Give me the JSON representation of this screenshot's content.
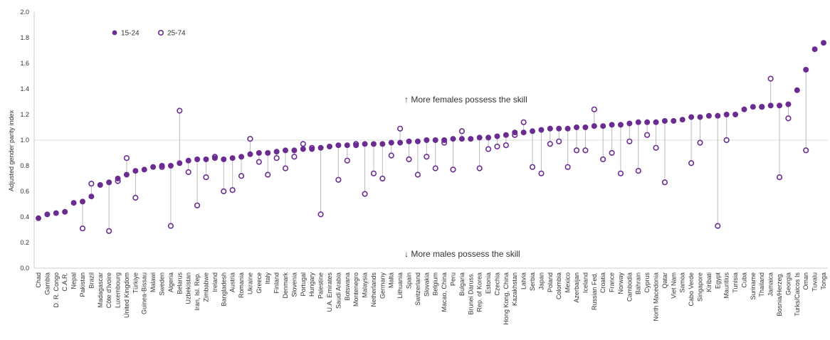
{
  "chart_data": {
    "type": "scatter",
    "ylabel": "Adjusted gender parity index",
    "ylim": [
      0,
      2
    ],
    "yticks": [
      "0.0",
      "0.2",
      "0.4",
      "0.6",
      "0.8",
      "1.0",
      "1.2",
      "1.4",
      "1.6",
      "1.8",
      "2.0"
    ],
    "reference_line": 1.0,
    "grid": false,
    "legend": "top-left",
    "annotations": {
      "upper": "↑ More females possess the skill",
      "lower": "↓ More males possess the skill"
    },
    "colors": {
      "series": "#6b2c91",
      "connector": "#bbbbbb",
      "axis": "#cccccc"
    },
    "series": [
      {
        "name": "15-24",
        "marker": "filled"
      },
      {
        "name": "25-74",
        "marker": "hollow"
      }
    ],
    "categories": [
      "Chad",
      "Gambia",
      "D. R. Congo",
      "C.A.R.",
      "Nepal",
      "Pakistan",
      "Brazil",
      "Madagascar",
      "Côte d'Ivoire",
      "Luxembourg",
      "United Kingdom",
      "Türkiye",
      "Guinea-Bissau",
      "Malawi",
      "Sweden",
      "Algeria",
      "Belarus",
      "Uzbekistan",
      "Iran, Isl. Rep.",
      "Zimbabwe",
      "Ireland",
      "Bangladesh",
      "Austria",
      "Romania",
      "Ukraine",
      "Greece",
      "Italy",
      "Finland",
      "Denmark",
      "Slovenia",
      "Portugal",
      "Hungary",
      "Palestine",
      "U.A. Emirates",
      "Saudi Arabia",
      "Botswana",
      "Montenegro",
      "Malaysia",
      "Netherlands",
      "Germany",
      "Malta",
      "Lithuania",
      "Spain",
      "Switzerland",
      "Slovakia",
      "Belgium",
      "Macao, China",
      "Peru",
      "Bulgaria",
      "Brunei Daruss.",
      "Rep. of Korea",
      "Estonia",
      "Czechia",
      "Hong Kong, China",
      "Kazakhstan",
      "Latvia",
      "Serbia",
      "Japan",
      "Poland",
      "Colombia",
      "Mexico",
      "Azerbaijan",
      "Iceland",
      "Russian Fed.",
      "Croatia",
      "France",
      "Norway",
      "Cambodia",
      "Bahrain",
      "Cyprus",
      "North Macedonia",
      "Qatar",
      "Viet Nam",
      "Samoa",
      "Cabo Verde",
      "Singapore",
      "Kiribati",
      "Egypt",
      "Mauritius",
      "Tunisia",
      "Cuba",
      "Suriname",
      "Thailand",
      "Jamaica",
      "Bosnia/Herzeg.",
      "Georgia",
      "Turks/Caicos Is",
      "Oman",
      "Tuvalu",
      "Tonga"
    ],
    "values_15_24": [
      0.39,
      0.42,
      0.43,
      0.44,
      0.51,
      0.52,
      0.56,
      0.65,
      0.67,
      0.7,
      0.73,
      0.76,
      0.77,
      0.79,
      0.8,
      0.8,
      0.82,
      0.84,
      0.85,
      0.85,
      0.86,
      0.85,
      0.86,
      0.87,
      0.89,
      0.9,
      0.9,
      0.91,
      0.92,
      0.92,
      0.93,
      0.93,
      0.94,
      0.95,
      0.96,
      0.96,
      0.96,
      0.97,
      0.97,
      0.97,
      0.98,
      0.98,
      0.99,
      0.99,
      1.0,
      1.0,
      1.0,
      1.01,
      1.01,
      1.01,
      1.02,
      1.02,
      1.03,
      1.04,
      1.06,
      1.06,
      1.07,
      1.08,
      1.09,
      1.09,
      1.09,
      1.1,
      1.1,
      1.11,
      1.11,
      1.12,
      1.12,
      1.13,
      1.14,
      1.14,
      1.14,
      1.15,
      1.15,
      1.16,
      1.18,
      1.18,
      1.19,
      1.19,
      1.2,
      1.2,
      1.24,
      1.26,
      1.26,
      1.27,
      1.27,
      1.28,
      1.39,
      1.55,
      1.71,
      1.76
    ],
    "values_25_74": [
      null,
      null,
      null,
      null,
      null,
      0.31,
      0.66,
      null,
      0.29,
      0.68,
      0.86,
      0.55,
      null,
      null,
      0.79,
      0.33,
      1.23,
      0.75,
      0.49,
      0.71,
      0.87,
      0.6,
      0.61,
      0.72,
      1.01,
      0.83,
      0.73,
      0.86,
      0.78,
      0.87,
      0.97,
      0.94,
      0.42,
      null,
      0.69,
      0.84,
      0.97,
      0.58,
      0.74,
      0.7,
      0.88,
      1.09,
      0.85,
      0.73,
      0.87,
      0.78,
      0.98,
      0.77,
      1.07,
      null,
      0.78,
      0.93,
      0.95,
      0.96,
      1.04,
      1.14,
      0.79,
      0.74,
      0.97,
      0.99,
      0.79,
      0.92,
      0.92,
      1.24,
      0.85,
      0.9,
      0.74,
      0.99,
      0.76,
      1.04,
      0.94,
      0.67,
      null,
      null,
      0.82,
      0.98,
      null,
      0.33,
      1.0,
      null,
      null,
      null,
      1.26,
      1.48,
      0.71,
      1.17,
      null,
      0.92,
      null,
      null
    ]
  }
}
